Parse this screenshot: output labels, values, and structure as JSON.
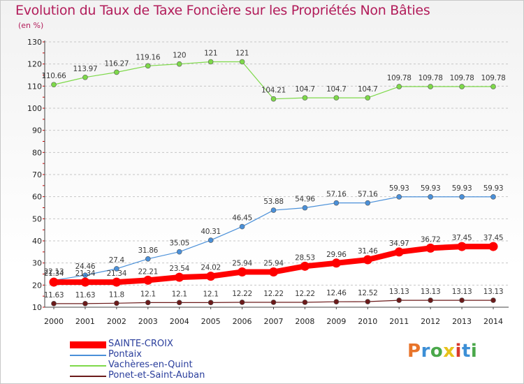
{
  "title": "Evolution du Taux de Taxe Foncière sur les Propriétés Non Bâties",
  "subtitle": "(en %)",
  "logo": {
    "text": "Proxiti",
    "colors": [
      "#e8742a",
      "#3c8fd6",
      "#4aa84a",
      "#e8c21a",
      "#d9382b",
      "#3c8fd6",
      "#4aa84a"
    ]
  },
  "chart_data": {
    "type": "line",
    "x": [
      "2000",
      "2001",
      "2002",
      "2003",
      "2004",
      "2005",
      "2006",
      "2007",
      "2008",
      "2009",
      "2010",
      "2011",
      "2012",
      "2013",
      "2014"
    ],
    "ylim": [
      10,
      130
    ],
    "yticks": [
      "10",
      "20",
      "30",
      "40",
      "50",
      "60",
      "70",
      "80",
      "90",
      "100",
      "110",
      "120",
      "130"
    ],
    "grid": "horizontal dashed",
    "legend_position": "bottom-left",
    "series": [
      {
        "name": "SAINTE-CROIX",
        "color": "#ff0000",
        "values": [
          21.34,
          21.34,
          21.34,
          22.21,
          23.54,
          24.02,
          25.94,
          25.94,
          28.53,
          29.96,
          31.46,
          34.97,
          36.72,
          37.45,
          37.45
        ],
        "labels": [
          "21.34",
          "21.34",
          "21.34",
          "22.21",
          "23.54",
          "24.02",
          "25.94",
          "25.94",
          "28.53",
          "29.96",
          "31.46",
          "34.97",
          "36.72",
          "37.45",
          "37.45"
        ]
      },
      {
        "name": "Pontaix",
        "color": "#4a90d9",
        "values": [
          22.13,
          24.46,
          27.4,
          31.86,
          35.05,
          40.31,
          46.45,
          53.88,
          54.96,
          57.16,
          57.16,
          59.93,
          59.93,
          59.93,
          59.93
        ],
        "labels": [
          "22.13",
          "24.46",
          "27.4",
          "31.86",
          "35.05",
          "40.31",
          "46.45",
          "53.88",
          "54.96",
          "57.16",
          "57.16",
          "59.93",
          "59.93",
          "59.93",
          "59.93"
        ]
      },
      {
        "name": "Vachères-en-Quint",
        "color": "#7ed94a",
        "values": [
          110.66,
          113.97,
          116.27,
          119.16,
          120,
          121,
          121,
          104.21,
          104.7,
          104.7,
          104.7,
          109.78,
          109.78,
          109.78,
          109.78
        ],
        "labels": [
          "110.66",
          "113.97",
          "116.27",
          "119.16",
          "120",
          "121",
          "121",
          "104.21",
          "104.7",
          "104.7",
          "104.7",
          "109.78",
          "109.78",
          "109.78",
          "109.78"
        ]
      },
      {
        "name": "Ponet-et-Saint-Auban",
        "color": "#6b1a1a",
        "values": [
          11.63,
          11.63,
          11.8,
          12.1,
          12.1,
          12.1,
          12.22,
          12.22,
          12.22,
          12.46,
          12.52,
          13.13,
          13.13,
          13.13,
          13.13
        ],
        "labels": [
          "11.63",
          "11.63",
          "11.8",
          "12.1",
          "12.1",
          "12.1",
          "12.22",
          "12.22",
          "12.22",
          "12.46",
          "12.52",
          "13.13",
          "13.13",
          "13.13",
          "13.13"
        ]
      }
    ]
  }
}
